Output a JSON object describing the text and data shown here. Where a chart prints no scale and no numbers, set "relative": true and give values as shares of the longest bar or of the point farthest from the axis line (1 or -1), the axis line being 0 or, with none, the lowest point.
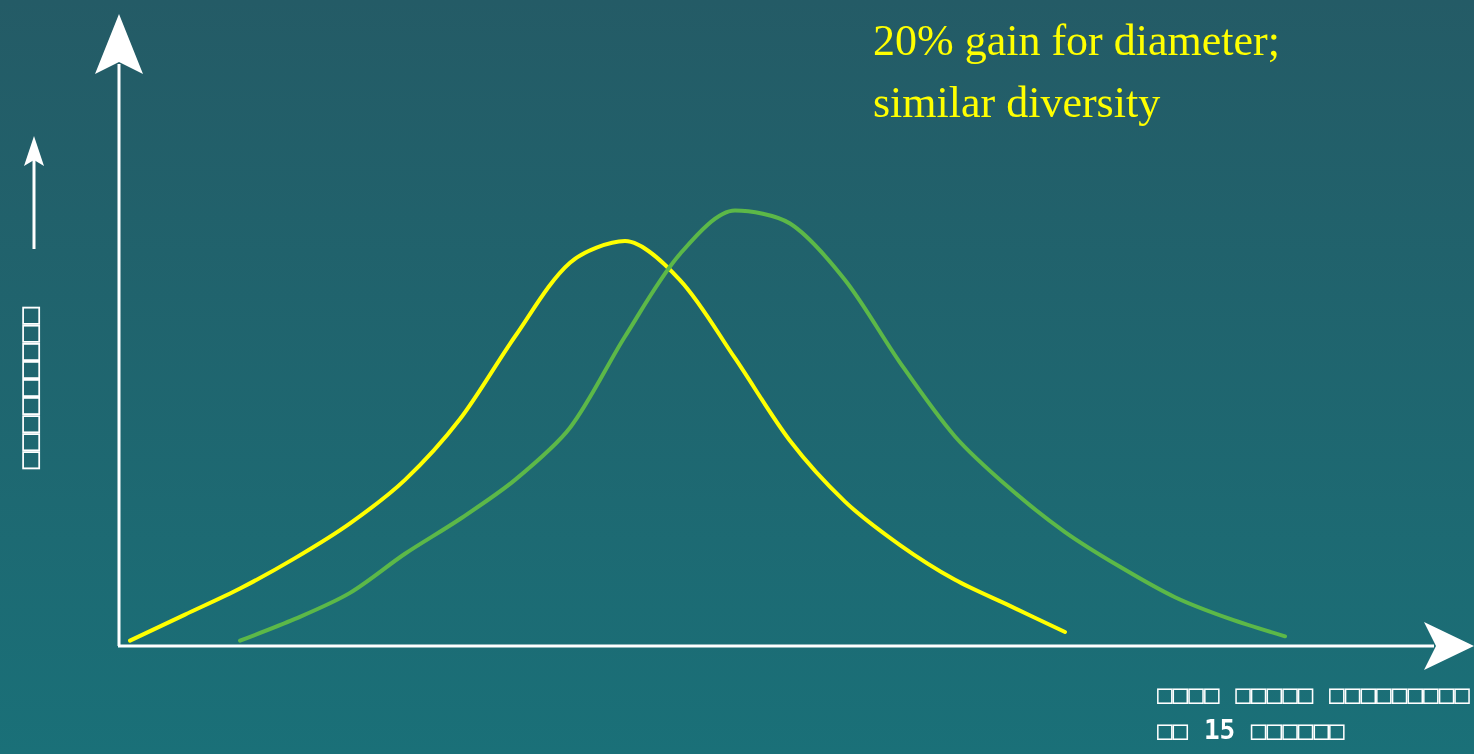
{
  "chart_data": {
    "type": "line",
    "relative": true,
    "title": "20% gain for diameter; similar diversity",
    "xlabel": "□□□□ □□□□□ □□□□□□□□□\n□□ 15 □□□□□□",
    "ylabel": "□□□□□□□□□",
    "categories": [
      null,
      null,
      null,
      null,
      null,
      null,
      null,
      null,
      null,
      null,
      null,
      null,
      null,
      null,
      null,
      null,
      null,
      null,
      null,
      null,
      null,
      null
    ],
    "series": [
      {
        "color": "#ffff00",
        "values": [
          0.01,
          0.07,
          0.13,
          0.2,
          0.28,
          0.38,
          0.52,
          0.71,
          0.88,
          0.93,
          0.84,
          0.66,
          0.47,
          0.33,
          0.23,
          0.15,
          0.09,
          0.03,
          null,
          null,
          null,
          null
        ]
      },
      {
        "color": "#5cb848",
        "values": [
          null,
          null,
          0.01,
          0.06,
          0.12,
          0.21,
          0.29,
          0.38,
          0.5,
          0.71,
          0.9,
          1,
          0.97,
          0.84,
          0.65,
          0.48,
          0.36,
          0.26,
          0.18,
          0.11,
          0.06,
          0.02
        ]
      }
    ],
    "grid": false,
    "marker": "none",
    "line_style": "solid"
  }
}
